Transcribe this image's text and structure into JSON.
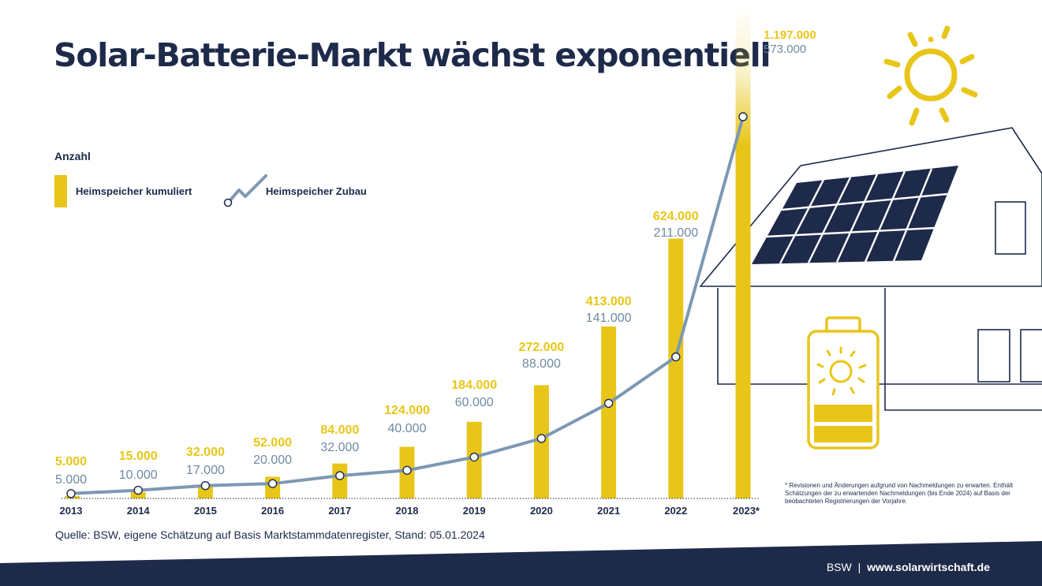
{
  "chart_data": {
    "type": "bar",
    "title": "Solar-Batterie-Markt wächst exponentiell",
    "ylabel": "Anzahl",
    "categories": [
      "2013",
      "2014",
      "2015",
      "2016",
      "2017",
      "2018",
      "2019",
      "2020",
      "2021",
      "2022",
      "2023*"
    ],
    "series": [
      {
        "name": "Heimspeicher kumuliert",
        "type": "bar",
        "values": [
          5000,
          15000,
          32000,
          52000,
          84000,
          124000,
          184000,
          272000,
          413000,
          624000,
          1197000
        ],
        "labels": [
          "5.000",
          "15.000",
          "32.000",
          "52.000",
          "84.000",
          "124.000",
          "184.000",
          "272.000",
          "413.000",
          "624.000",
          "1.197.000"
        ]
      },
      {
        "name": "Heimspeicher Zubau",
        "type": "line",
        "values": [
          5000,
          10000,
          17000,
          20000,
          32000,
          40000,
          60000,
          88000,
          141000,
          211000,
          573000
        ],
        "labels": [
          "5.000",
          "10.000",
          "17.000",
          "20.000",
          "32.000",
          "40.000",
          "60.000",
          "88.000",
          "141.000",
          "211.000",
          "573.000"
        ]
      }
    ],
    "grid": false,
    "legend_position": "top-left"
  },
  "colors": {
    "bar": "#e8c619",
    "line": "#7d98b3",
    "navy": "#1e2a4a",
    "label_line": "#6f8aa3"
  },
  "source": "Quelle: BSW, eigene Schätzung auf Basis Marktstammdatenregister, Stand: 05.01.2024",
  "footnote": "* Revisionen und Änderungen aufgrund von Nachmeldungen zu erwarten. Enthält Schätzungen der zu erwartenden Nachmeldungen (bis Ende 2024) auf Basis der beobachteten Registrierungen der Vorjahre.",
  "footer": {
    "brand": "BSW",
    "separator": "|",
    "url": "www.solarwirtschaft.de"
  },
  "illustration": {
    "icons": [
      "sun-icon",
      "house-icon",
      "solar-panel-icon",
      "battery-icon"
    ]
  }
}
